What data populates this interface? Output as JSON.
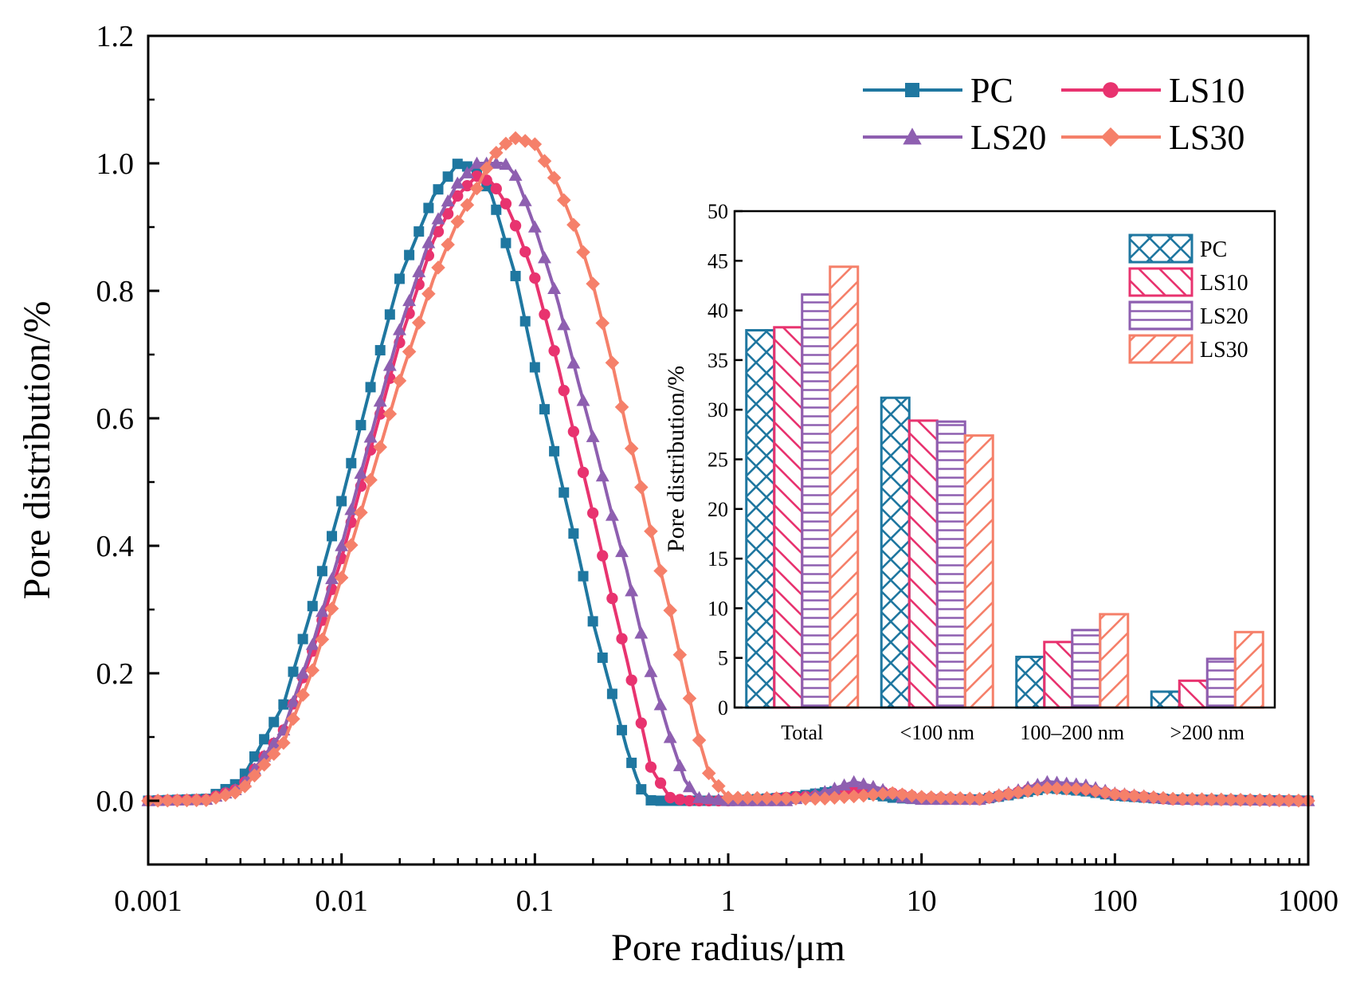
{
  "chart_data": [
    {
      "type": "line",
      "title": "",
      "xlabel": "Pore radius/μm",
      "ylabel": "Pore distribution/%",
      "xscale": "log",
      "xlim": [
        0.001,
        1000
      ],
      "ylim": [
        -0.1,
        1.2
      ],
      "xticks": [
        0.001,
        0.01,
        0.1,
        1,
        10,
        100,
        1000
      ],
      "xtick_labels": [
        "0.001",
        "0.01",
        "0.1",
        "1",
        "10",
        "100",
        "1000"
      ],
      "yticks": [
        0.0,
        0.2,
        0.4,
        0.6,
        0.8,
        1.0,
        1.2
      ],
      "ytick_labels": [
        "0.0",
        "0.2",
        "0.4",
        "0.6",
        "0.8",
        "1.0",
        "1.2"
      ],
      "legend_position": "top-right",
      "series": [
        {
          "name": "PC",
          "color": "#1f77a0",
          "marker": "square",
          "x": [
            0.001,
            0.002,
            0.003,
            0.005,
            0.007,
            0.01,
            0.015,
            0.02,
            0.03,
            0.04,
            0.05,
            0.06,
            0.07,
            0.08,
            0.1,
            0.13,
            0.17,
            0.2,
            0.25,
            0.3,
            0.35,
            0.4,
            1,
            2,
            3.5,
            5,
            7,
            10,
            20,
            30,
            45,
            70,
            100,
            200,
            1000
          ],
          "y": [
            0,
            0.003,
            0.03,
            0.15,
            0.3,
            0.47,
            0.68,
            0.82,
            0.95,
            1.0,
            0.99,
            0.95,
            0.88,
            0.82,
            0.68,
            0.53,
            0.38,
            0.28,
            0.17,
            0.08,
            0.02,
            0,
            0,
            0.005,
            0.015,
            0.012,
            0.005,
            0.002,
            0.002,
            0.01,
            0.02,
            0.015,
            0.008,
            0.002,
            0
          ]
        },
        {
          "name": "LS10",
          "color": "#e8336f",
          "marker": "circle",
          "x": [
            0.001,
            0.002,
            0.003,
            0.005,
            0.007,
            0.01,
            0.015,
            0.02,
            0.03,
            0.04,
            0.05,
            0.06,
            0.07,
            0.08,
            0.1,
            0.13,
            0.17,
            0.2,
            0.25,
            0.3,
            0.35,
            0.4,
            0.5,
            0.6,
            1,
            3,
            5,
            7,
            10,
            20,
            30,
            45,
            70,
            100,
            200,
            1000
          ],
          "y": [
            0,
            0.002,
            0.02,
            0.11,
            0.23,
            0.38,
            0.58,
            0.72,
            0.88,
            0.95,
            0.98,
            0.97,
            0.94,
            0.9,
            0.82,
            0.69,
            0.54,
            0.45,
            0.32,
            0.22,
            0.13,
            0.05,
            0.005,
            0,
            0,
            0.008,
            0.018,
            0.012,
            0.005,
            0.002,
            0.012,
            0.025,
            0.018,
            0.01,
            0.002,
            0
          ]
        },
        {
          "name": "LS20",
          "color": "#8e5fb0",
          "marker": "triangle",
          "x": [
            0.001,
            0.002,
            0.003,
            0.005,
            0.007,
            0.01,
            0.015,
            0.02,
            0.03,
            0.04,
            0.05,
            0.06,
            0.07,
            0.08,
            0.1,
            0.13,
            0.17,
            0.2,
            0.25,
            0.3,
            0.35,
            0.4,
            0.5,
            0.6,
            0.7,
            1,
            2,
            3,
            4.5,
            6,
            8,
            10,
            20,
            30,
            45,
            70,
            100,
            200,
            1000
          ],
          "y": [
            0,
            0.002,
            0.02,
            0.11,
            0.24,
            0.4,
            0.6,
            0.74,
            0.9,
            0.97,
            1.0,
            1.0,
            1.0,
            0.98,
            0.9,
            0.79,
            0.65,
            0.57,
            0.45,
            0.36,
            0.27,
            0.2,
            0.1,
            0.03,
            0.005,
            0,
            0,
            0.012,
            0.03,
            0.02,
            0.005,
            0.002,
            0.002,
            0.015,
            0.03,
            0.025,
            0.012,
            0.003,
            0
          ]
        },
        {
          "name": "LS30",
          "color": "#f5806a",
          "marker": "diamond",
          "x": [
            0.001,
            0.002,
            0.003,
            0.005,
            0.007,
            0.01,
            0.015,
            0.02,
            0.03,
            0.04,
            0.05,
            0.06,
            0.07,
            0.08,
            0.1,
            0.13,
            0.17,
            0.2,
            0.25,
            0.3,
            0.35,
            0.4,
            0.5,
            0.6,
            0.7,
            0.8,
            1,
            3,
            5,
            7,
            10,
            20,
            30,
            45,
            70,
            100,
            200,
            1000
          ],
          "y": [
            0,
            0.001,
            0.015,
            0.09,
            0.2,
            0.35,
            0.53,
            0.66,
            0.82,
            0.91,
            0.96,
            1.01,
            1.03,
            1.04,
            1.03,
            0.97,
            0.88,
            0.81,
            0.69,
            0.58,
            0.5,
            0.42,
            0.3,
            0.19,
            0.1,
            0.04,
            0.005,
            0.003,
            0.008,
            0.012,
            0.006,
            0.003,
            0.012,
            0.02,
            0.018,
            0.01,
            0.003,
            0
          ]
        }
      ]
    },
    {
      "type": "bar",
      "title": "",
      "xlabel": "",
      "ylabel": "Pore distribution/%",
      "ylim": [
        0,
        50
      ],
      "yticks": [
        0,
        5,
        10,
        15,
        20,
        25,
        30,
        35,
        40,
        45,
        50
      ],
      "ytick_labels": [
        "0",
        "5",
        "10",
        "15",
        "20",
        "25",
        "30",
        "35",
        "40",
        "45",
        "50"
      ],
      "legend_position": "top-right",
      "categories": [
        "Total",
        "<100 nm",
        "100–200 nm",
        ">200 nm"
      ],
      "series": [
        {
          "name": "PC",
          "color": "#1f77a0",
          "pattern": "crosshatch",
          "values": [
            38.0,
            31.2,
            5.1,
            1.6
          ]
        },
        {
          "name": "LS10",
          "color": "#e8336f",
          "pattern": "backslash",
          "values": [
            38.3,
            28.9,
            6.6,
            2.7
          ]
        },
        {
          "name": "LS20",
          "color": "#8e5fb0",
          "pattern": "horizontal",
          "values": [
            41.6,
            28.8,
            7.8,
            4.9
          ]
        },
        {
          "name": "LS30",
          "color": "#f5806a",
          "pattern": "slash",
          "values": [
            44.4,
            27.4,
            9.4,
            7.6
          ]
        }
      ]
    }
  ]
}
